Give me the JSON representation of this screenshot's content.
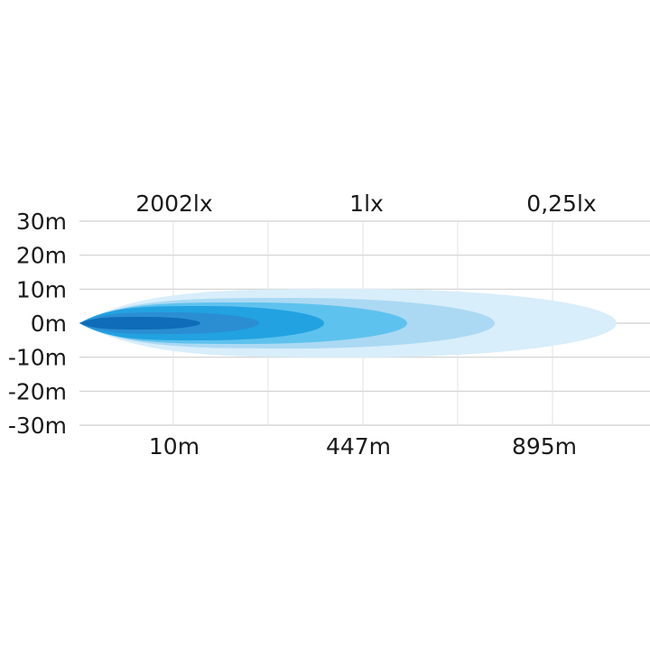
{
  "chart_data": {
    "type": "area",
    "title": "",
    "top_labels": [
      "2002lx",
      "1lx",
      "0,25lx"
    ],
    "bottom_labels": [
      "10m",
      "447m",
      "895m"
    ],
    "y_tick_labels": [
      "30m",
      "20m",
      "10m",
      "0m",
      "-10m",
      "-20m",
      "-30m"
    ],
    "y_ticks": [
      30,
      20,
      10,
      0,
      -10,
      -20,
      -30
    ],
    "ylim": [
      -30,
      30
    ],
    "grid": true,
    "contour_colors": [
      "#d8eefa",
      "#abd9f3",
      "#5ec2ee",
      "#22a2e1",
      "#2b8ed3",
      "#0f6cb8"
    ]
  }
}
